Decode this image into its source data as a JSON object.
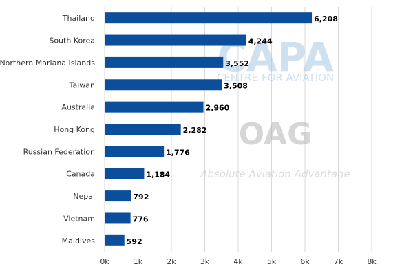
{
  "chart_data": {
    "type": "bar",
    "orientation": "horizontal",
    "categories": [
      "Thailand",
      "South Korea",
      "Northern Mariana Islands",
      "Taiwan",
      "Australia",
      "Hong Kong",
      "Russian Federation",
      "Canada",
      "Nepal",
      "Vietnam",
      "Maldives"
    ],
    "values": [
      6208,
      4244,
      3552,
      3508,
      2960,
      2282,
      1776,
      1184,
      792,
      776,
      592
    ],
    "value_labels": [
      "6,208",
      "4,244",
      "3,552",
      "3,508",
      "2,960",
      "2,282",
      "1,776",
      "1,184",
      "792",
      "776",
      "592"
    ],
    "xlim": [
      0,
      8000
    ],
    "x_ticks": [
      0,
      1000,
      2000,
      3000,
      4000,
      5000,
      6000,
      7000,
      8000
    ],
    "x_tick_labels": [
      "0k",
      "1k",
      "2k",
      "3k",
      "4k",
      "5k",
      "6k",
      "7k",
      "8k"
    ],
    "title": "",
    "xlabel": "",
    "ylabel": "",
    "grid": "vertical",
    "legend": "none",
    "bar_color": "#0b4f9c"
  },
  "watermark": {
    "brand": "CAPA",
    "brand_sub": "CENTRE FOR AVIATION",
    "logo": "OAG",
    "tagline": "Absolute Aviation Advantage"
  }
}
